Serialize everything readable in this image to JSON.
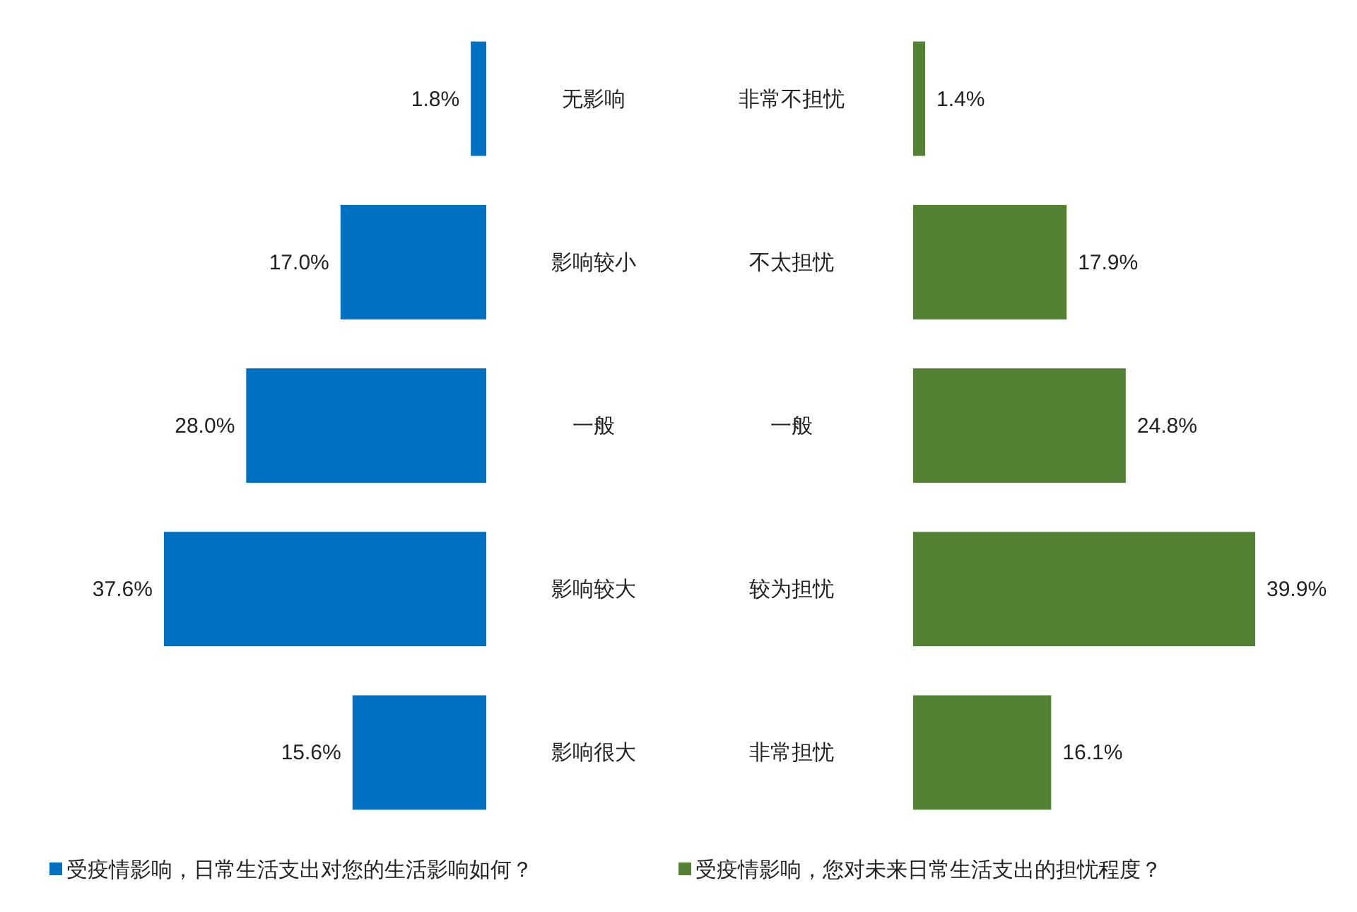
{
  "chart_data": [
    {
      "type": "bar",
      "orientation": "horizontal",
      "categories": [
        "无影响",
        "影响较小",
        "一般",
        "影响较大",
        "影响很大"
      ],
      "legend": "bottom",
      "series": [
        {
          "name": "受疫情影响，日常生活支出对您的生活影响如何？",
          "color": "#0070c0",
          "values": [
            1.8,
            17.0,
            28.0,
            37.6,
            15.6
          ],
          "value_labels": [
            "1.8%",
            "17.0%",
            "28.0%",
            "37.6%",
            "15.6%"
          ]
        }
      ]
    },
    {
      "type": "bar",
      "orientation": "horizontal",
      "categories": [
        "非常不担忧",
        "不太担忧",
        "一般",
        "较为担忧",
        "非常担忧"
      ],
      "legend": "bottom",
      "series": [
        {
          "name": "受疫情影响，您对未来日常生活支出的担忧程度？",
          "color": "#548235",
          "values": [
            1.4,
            17.9,
            24.8,
            39.9,
            16.1
          ],
          "value_labels": [
            "1.4%",
            "17.9%",
            "24.8%",
            "39.9%",
            "16.1%"
          ]
        }
      ]
    }
  ]
}
